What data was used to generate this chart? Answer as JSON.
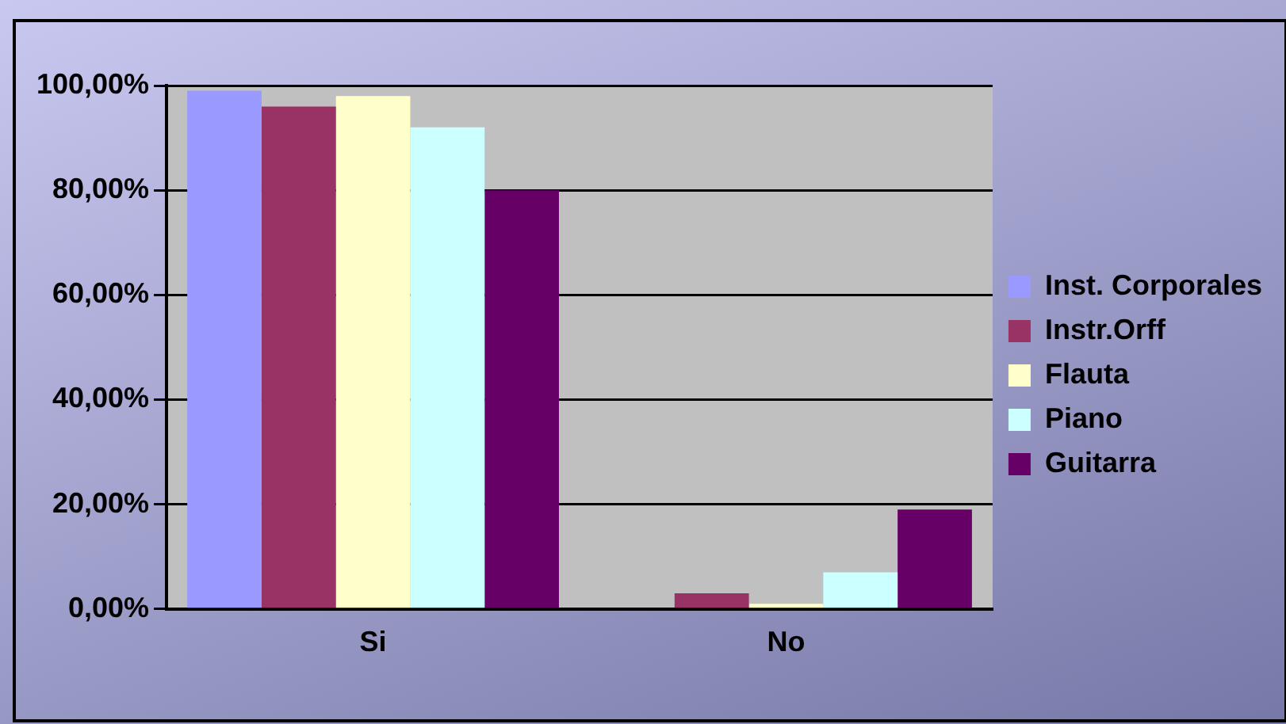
{
  "chart_data": {
    "type": "bar",
    "categories": [
      "Si",
      "No"
    ],
    "series": [
      {
        "name": "Inst. Corporales",
        "color": "#9999ff",
        "values": [
          99,
          0
        ]
      },
      {
        "name": "Instr.Orff",
        "color": "#993366",
        "values": [
          96,
          3
        ]
      },
      {
        "name": "Flauta",
        "color": "#ffffcc",
        "values": [
          98,
          1
        ]
      },
      {
        "name": "Piano",
        "color": "#ccffff",
        "values": [
          92,
          7
        ]
      },
      {
        "name": "Guitarra",
        "color": "#660066",
        "values": [
          80,
          19
        ]
      }
    ],
    "ylim": [
      0,
      100
    ],
    "yticks": [
      {
        "value": 0,
        "label": "0,00%"
      },
      {
        "value": 20,
        "label": "20,00%"
      },
      {
        "value": 40,
        "label": "40,00%"
      },
      {
        "value": 60,
        "label": "60,00%"
      },
      {
        "value": 80,
        "label": "80,00%"
      },
      {
        "value": 100,
        "label": "100,00%"
      }
    ],
    "grid": "y",
    "legend": "right"
  }
}
